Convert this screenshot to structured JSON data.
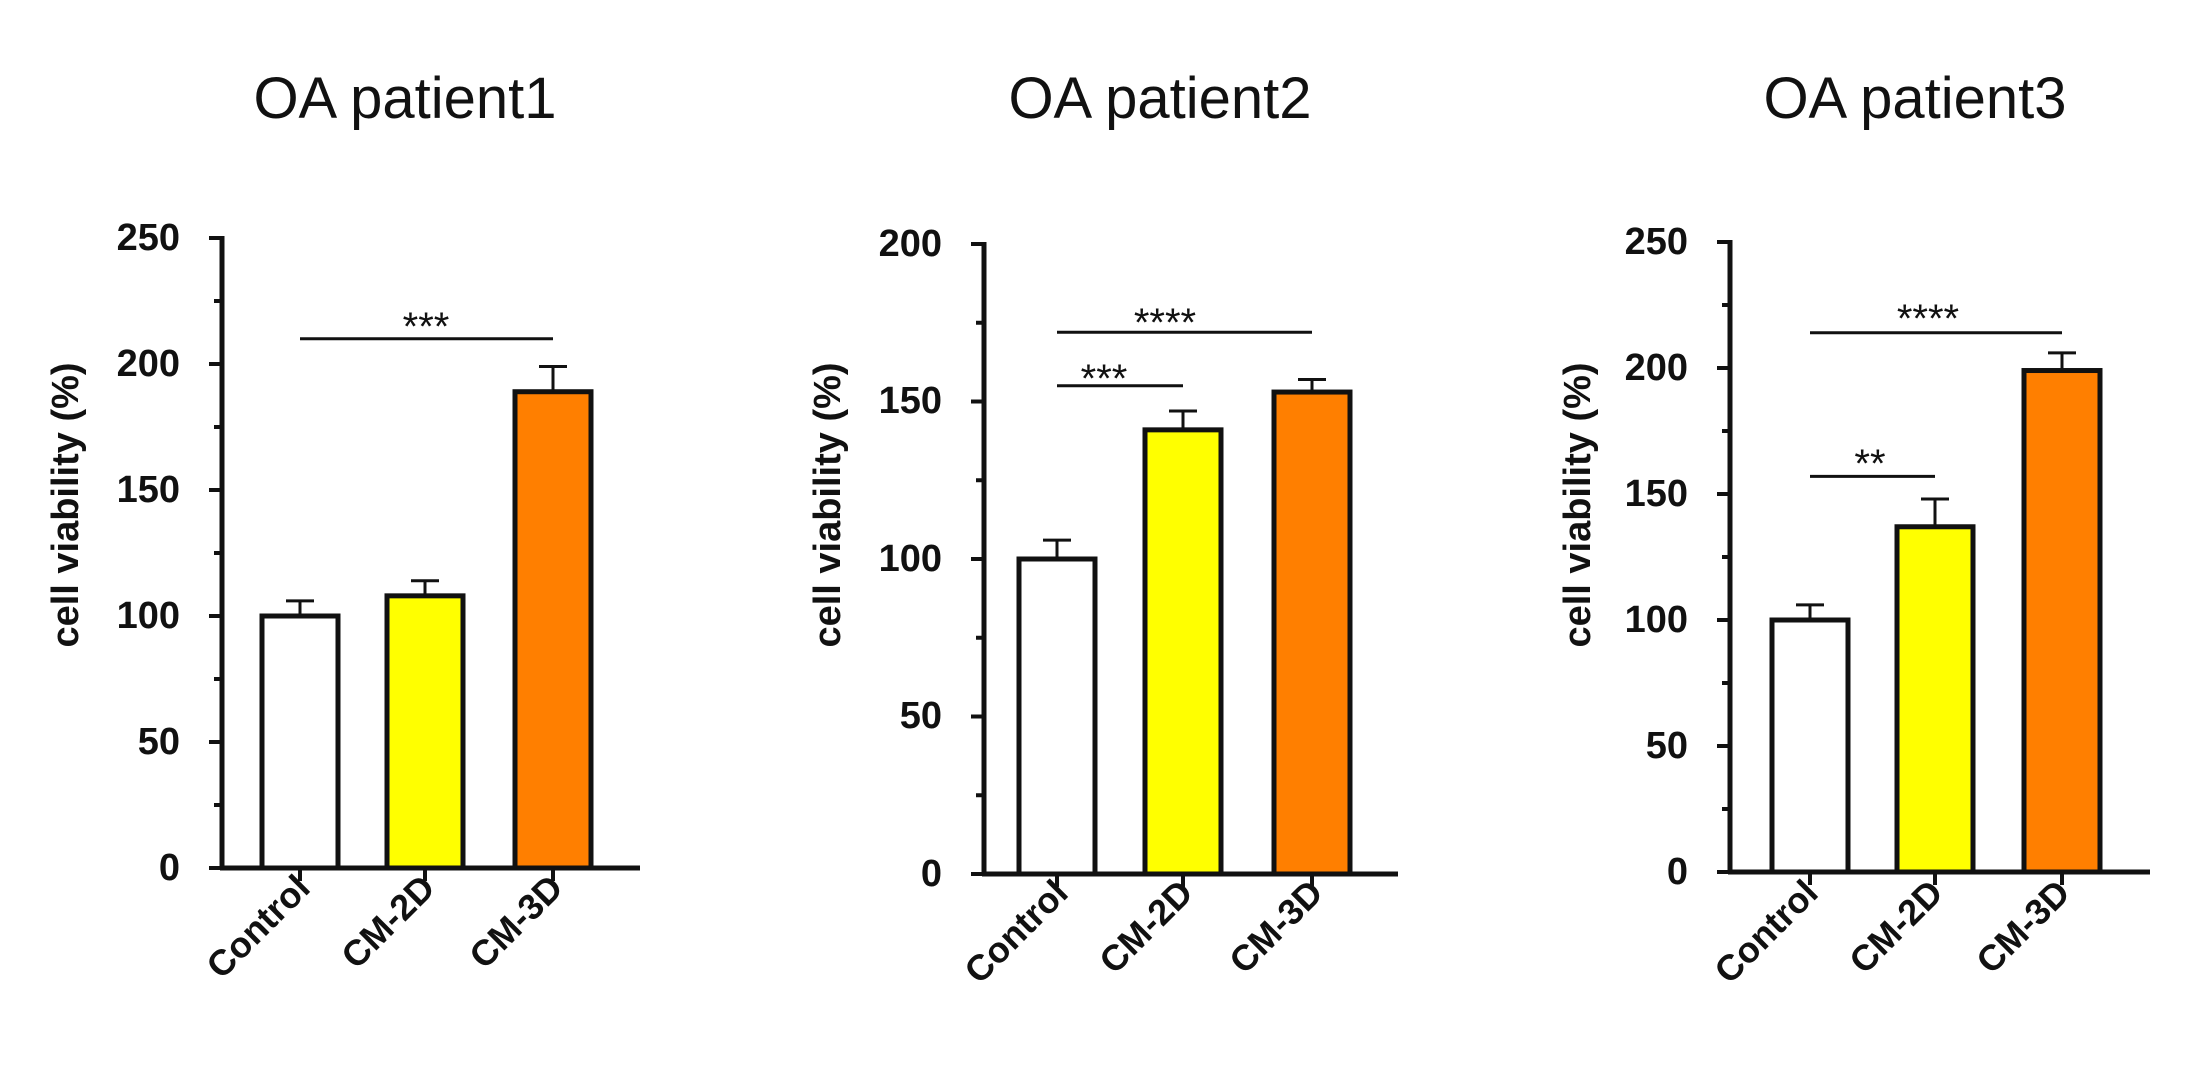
{
  "colors": {
    "Control": "#ffffff",
    "CM-2D": "#ffff00",
    "CM-3D": "#ff7f00",
    "stroke": "#111111"
  },
  "chart_data": [
    {
      "type": "bar",
      "title": "OA patient1",
      "xlabel": "",
      "ylabel": "cell viability (%)",
      "ylim": [
        0,
        250
      ],
      "yticks": [
        "0",
        "50",
        "100",
        "150",
        "200",
        "250"
      ],
      "categories": [
        "Control",
        "CM-2D",
        "CM-3D"
      ],
      "values": [
        100,
        108,
        189
      ],
      "errors": [
        6,
        6,
        10
      ],
      "significance": [
        {
          "from": 0,
          "to": 2,
          "y": 210,
          "label": "***"
        }
      ]
    },
    {
      "type": "bar",
      "title": "OA patient2",
      "xlabel": "",
      "ylabel": "cell viability (%)",
      "ylim": [
        0,
        200
      ],
      "yticks": [
        "0",
        "50",
        "100",
        "150",
        "200"
      ],
      "categories": [
        "Control",
        "CM-2D",
        "CM-3D"
      ],
      "values": [
        100,
        141,
        153
      ],
      "errors": [
        6,
        6,
        4
      ],
      "significance": [
        {
          "from": 0,
          "to": 2,
          "y": 172,
          "label": "****"
        },
        {
          "from": 0,
          "to": 1,
          "y": 155,
          "label": "***"
        }
      ]
    },
    {
      "type": "bar",
      "title": "OA patient3",
      "xlabel": "",
      "ylabel": "cell viability (%)",
      "ylim": [
        0,
        250
      ],
      "yticks": [
        "0",
        "50",
        "100",
        "150",
        "200",
        "250"
      ],
      "categories": [
        "Control",
        "CM-2D",
        "CM-3D"
      ],
      "values": [
        100,
        137,
        199
      ],
      "errors": [
        6,
        11,
        7
      ],
      "significance": [
        {
          "from": 0,
          "to": 2,
          "y": 214,
          "label": "****"
        },
        {
          "from": 0,
          "to": 1,
          "y": 157,
          "label": "**"
        }
      ]
    }
  ]
}
